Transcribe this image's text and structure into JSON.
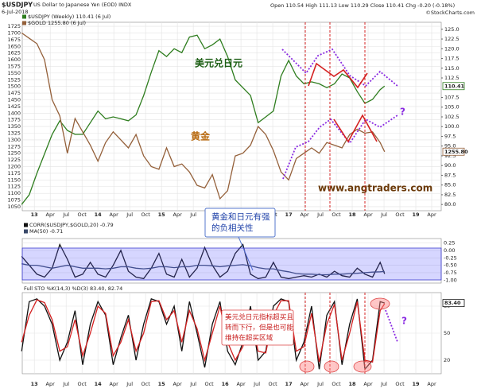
{
  "chart_data": [
    {
      "type": "line",
      "title": "$USDJPY",
      "subtitle": "US Dollar to Japanese Yen (EOD) INDX",
      "date": "6-Jul-2018",
      "quote": "Open 110.54 High 111.13 Low 110.29 Close 110.41 Chg -0.20 (-0.18%)",
      "credit": "©StockCharts.com",
      "xlim": [
        2012.81,
        2019.4
      ],
      "xticks": [
        {
          "value": 2013,
          "label": "13"
        },
        {
          "value": 2013.25,
          "label": "Apr"
        },
        {
          "value": 2013.5,
          "label": "Jul"
        },
        {
          "value": 2013.75,
          "label": "Oct"
        },
        {
          "value": 2014,
          "label": "14"
        },
        {
          "value": 2014.25,
          "label": "Apr"
        },
        {
          "value": 2014.5,
          "label": "Jul"
        },
        {
          "value": 2014.75,
          "label": "Oct"
        },
        {
          "value": 2015,
          "label": "15"
        },
        {
          "value": 2015.25,
          "label": "Apr"
        },
        {
          "value": 2015.5,
          "label": "Jul"
        },
        {
          "value": 2015.75,
          "label": "Oct"
        },
        {
          "value": 2016,
          "label": "16"
        },
        {
          "value": 2016.25,
          "label": "Apr"
        },
        {
          "value": 2016.5,
          "label": "Jul"
        },
        {
          "value": 2016.75,
          "label": "Oct"
        },
        {
          "value": 2017,
          "label": "17"
        },
        {
          "value": 2017.25,
          "label": "Apr"
        },
        {
          "value": 2017.5,
          "label": "Jul"
        },
        {
          "value": 2017.75,
          "label": "Oct"
        },
        {
          "value": 2018,
          "label": "18"
        },
        {
          "value": 2018.25,
          "label": "Apr"
        },
        {
          "value": 2018.5,
          "label": "Jul"
        },
        {
          "value": 2018.75,
          "label": "Oct"
        },
        {
          "value": 2019,
          "label": "19"
        },
        {
          "value": 2019.25,
          "label": "Apr"
        }
      ],
      "ylim": [
        1035,
        1740
      ],
      "yticks": [
        1050,
        1075,
        1100,
        1125,
        1150,
        1175,
        1200,
        1225,
        1250,
        1275,
        1300,
        1325,
        1350,
        1375,
        1400,
        1425,
        1450,
        1475,
        1500,
        1525,
        1550,
        1575,
        1600,
        1625,
        1650,
        1675,
        1700,
        1725
      ],
      "y2lim": [
        78.4,
        126.8
      ],
      "y2ticks": [
        {
          "value": 80,
          "label": "80.0"
        },
        {
          "value": 82.5,
          "label": "82.5"
        },
        {
          "value": 85,
          "label": "85.0"
        },
        {
          "value": 87.5,
          "label": "87.5"
        },
        {
          "value": 90,
          "label": "90.0"
        },
        {
          "value": 92.5,
          "label": "92.5"
        },
        {
          "value": 95,
          "label": "95.0"
        },
        {
          "value": 97.5,
          "label": "97.5"
        },
        {
          "value": 100,
          "label": "100.0"
        },
        {
          "value": 102.5,
          "label": "102.5"
        },
        {
          "value": 105,
          "label": "105.0"
        },
        {
          "value": 107.5,
          "label": "107.5"
        },
        {
          "value": 112.5,
          "label": "112.5"
        },
        {
          "value": 115,
          "label": "115.0"
        },
        {
          "value": 117.5,
          "label": "117.5"
        },
        {
          "value": 120,
          "label": "120.0"
        },
        {
          "value": 122.5,
          "label": "122.5"
        },
        {
          "value": 125,
          "label": "125.0"
        }
      ],
      "x": [
        2012.8,
        2012.92,
        2013.04,
        2013.16,
        2013.28,
        2013.4,
        2013.52,
        2013.64,
        2013.76,
        2013.88,
        2014,
        2014.12,
        2014.24,
        2014.36,
        2014.48,
        2014.6,
        2014.72,
        2014.84,
        2014.96,
        2015.08,
        2015.2,
        2015.32,
        2015.44,
        2015.56,
        2015.68,
        2015.8,
        2015.92,
        2016.04,
        2016.16,
        2016.28,
        2016.4,
        2016.52,
        2016.64,
        2016.76,
        2016.88,
        2017,
        2017.12,
        2017.24,
        2017.36,
        2017.48,
        2017.6,
        2017.72,
        2017.84,
        2017.96,
        2018.08,
        2018.2,
        2018.32,
        2018.44,
        2018.51
      ],
      "series": [
        {
          "name": "$USDJPY (Weekly) 110.41 (6 Jul)",
          "color": "#2e7d1e",
          "axis": "y2",
          "last_label": "110.41",
          "values": [
            80,
            82.5,
            88,
            93,
            98,
            101.5,
            99,
            98,
            98,
            101,
            104,
            102,
            102.5,
            102,
            101.5,
            103,
            108,
            114,
            119.5,
            118,
            120,
            119,
            123,
            123.5,
            120,
            121,
            122.5,
            118,
            112,
            110,
            108,
            101,
            102.5,
            104,
            113,
            117,
            113,
            111,
            111.5,
            111,
            110,
            111,
            113.5,
            112.5,
            109,
            106,
            107,
            109.5,
            110.41
          ]
        },
        {
          "name": "$GOLD 1255.80 (6 Jul)",
          "color": "#94603a",
          "last_label": "1255.80",
          "values": [
            1700,
            1680,
            1660,
            1600,
            1450,
            1390,
            1250,
            1380,
            1330,
            1280,
            1220,
            1290,
            1330,
            1300,
            1270,
            1320,
            1240,
            1200,
            1190,
            1270,
            1200,
            1210,
            1180,
            1130,
            1120,
            1170,
            1080,
            1110,
            1240,
            1250,
            1280,
            1350,
            1320,
            1260,
            1180,
            1150,
            1230,
            1250,
            1270,
            1250,
            1290,
            1280,
            1270,
            1320,
            1340,
            1325,
            1330,
            1290,
            1255.8
          ]
        }
      ],
      "annotations": [
        "美元兑日元",
        "黄金",
        "www.angtraders.com",
        "?"
      ]
    },
    {
      "type": "line",
      "xlim": [
        2012.81,
        2019.4
      ],
      "ylim": [
        -1.1,
        0.4
      ],
      "yticks": [
        {
          "value": 0.25,
          "label": "0.25"
        },
        {
          "value": 0,
          "label": "0.00"
        },
        {
          "value": -0.25,
          "label": "-0.25"
        },
        {
          "value": -0.5,
          "label": "-0.50"
        },
        {
          "value": -0.75,
          "label": "-0.75"
        },
        {
          "value": -1,
          "label": "-1.00"
        }
      ],
      "x": [
        2012.8,
        2012.92,
        2013.04,
        2013.16,
        2013.28,
        2013.4,
        2013.52,
        2013.64,
        2013.76,
        2013.88,
        2014,
        2014.12,
        2014.24,
        2014.36,
        2014.48,
        2014.6,
        2014.72,
        2014.84,
        2014.96,
        2015.08,
        2015.2,
        2015.32,
        2015.44,
        2015.56,
        2015.68,
        2015.8,
        2015.92,
        2016.04,
        2016.16,
        2016.28,
        2016.4,
        2016.52,
        2016.64,
        2016.76,
        2016.88,
        2017,
        2017.12,
        2017.24,
        2017.36,
        2017.48,
        2017.6,
        2017.72,
        2017.84,
        2017.96,
        2018.08,
        2018.2,
        2018.32,
        2018.44,
        2018.51
      ],
      "series": [
        {
          "name": "CORR($USDJPY,$GOLD,20) -0.79",
          "color": "#111111",
          "values": [
            -0.2,
            -0.5,
            -0.8,
            -0.9,
            -0.6,
            0.2,
            -0.3,
            -0.9,
            -0.8,
            -0.4,
            -0.8,
            -0.9,
            -0.5,
            0,
            -0.7,
            -0.9,
            -0.95,
            -0.6,
            -0.1,
            -0.8,
            -0.9,
            -0.3,
            -0.9,
            -0.6,
            0.1,
            -0.5,
            -0.9,
            -0.7,
            -0.1,
            0.2,
            -0.8,
            -0.95,
            -0.9,
            -0.4,
            -0.9,
            -0.95,
            -0.9,
            -0.85,
            -0.9,
            -0.8,
            -0.9,
            -0.7,
            -0.85,
            -0.9,
            -0.6,
            -0.8,
            -0.9,
            -0.4,
            -0.79
          ]
        },
        {
          "name": "MA(50) -0.71",
          "color": "#3a4a6a",
          "values": [
            -0.45,
            -0.5,
            -0.5,
            -0.55,
            -0.6,
            -0.55,
            -0.5,
            -0.55,
            -0.6,
            -0.6,
            -0.6,
            -0.62,
            -0.6,
            -0.55,
            -0.55,
            -0.6,
            -0.62,
            -0.6,
            -0.55,
            -0.55,
            -0.58,
            -0.55,
            -0.55,
            -0.5,
            -0.5,
            -0.52,
            -0.55,
            -0.52,
            -0.5,
            -0.48,
            -0.52,
            -0.58,
            -0.62,
            -0.62,
            -0.68,
            -0.72,
            -0.78,
            -0.8,
            -0.8,
            -0.82,
            -0.82,
            -0.8,
            -0.8,
            -0.78,
            -0.77,
            -0.75,
            -0.73,
            -0.72,
            -0.71
          ]
        }
      ],
      "callout": [
        "黄金和日元有强",
        "的负相关性"
      ]
    },
    {
      "type": "line",
      "title": "Full STO %K(14,3) %D(3) 83.40, 82.74",
      "xlim": [
        2012.81,
        2019.4
      ],
      "ylim": [
        5,
        95
      ],
      "yticks": [
        20,
        50,
        80
      ],
      "xticks": [
        {
          "value": 2013,
          "label": "13"
        },
        {
          "value": 2013.25,
          "label": "Apr"
        },
        {
          "value": 2013.5,
          "label": "Jul"
        },
        {
          "value": 2013.75,
          "label": "Oct"
        },
        {
          "value": 2014,
          "label": "14"
        },
        {
          "value": 2014.25,
          "label": "Apr"
        },
        {
          "value": 2014.5,
          "label": "Jul"
        },
        {
          "value": 2014.75,
          "label": "Oct"
        },
        {
          "value": 2015,
          "label": "15"
        },
        {
          "value": 2015.25,
          "label": "Apr"
        },
        {
          "value": 2015.5,
          "label": "Jul"
        },
        {
          "value": 2015.75,
          "label": "Oct"
        },
        {
          "value": 2016,
          "label": "16"
        },
        {
          "value": 2016.25,
          "label": "Apr"
        },
        {
          "value": 2016.5,
          "label": "Jul"
        },
        {
          "value": 2016.75,
          "label": "Oct"
        },
        {
          "value": 2017,
          "label": "17"
        },
        {
          "value": 2017.25,
          "label": "Apr"
        },
        {
          "value": 2017.5,
          "label": "Jul"
        },
        {
          "value": 2017.75,
          "label": "Oct"
        },
        {
          "value": 2018,
          "label": "18"
        },
        {
          "value": 2018.25,
          "label": "Apr"
        },
        {
          "value": 2018.5,
          "label": "Jul"
        },
        {
          "value": 2018.75,
          "label": "Oct"
        },
        {
          "value": 2019,
          "label": "19"
        },
        {
          "value": 2019.25,
          "label": "Apr"
        }
      ],
      "x": [
        2012.8,
        2012.92,
        2013.04,
        2013.16,
        2013.28,
        2013.4,
        2013.52,
        2013.64,
        2013.76,
        2013.88,
        2014,
        2014.12,
        2014.24,
        2014.36,
        2014.48,
        2014.6,
        2014.72,
        2014.84,
        2014.96,
        2015.08,
        2015.2,
        2015.32,
        2015.44,
        2015.56,
        2015.68,
        2015.8,
        2015.92,
        2016.04,
        2016.16,
        2016.28,
        2016.4,
        2016.52,
        2016.64,
        2016.76,
        2016.88,
        2017,
        2017.12,
        2017.24,
        2017.36,
        2017.48,
        2017.6,
        2017.72,
        2017.84,
        2017.96,
        2018.08,
        2018.2,
        2018.32,
        2018.44,
        2018.51
      ],
      "series": [
        {
          "color": "#111111",
          "last_label": "83.40",
          "values": [
            30,
            85,
            88,
            80,
            60,
            20,
            40,
            75,
            15,
            60,
            85,
            70,
            15,
            45,
            70,
            20,
            60,
            88,
            85,
            60,
            80,
            30,
            85,
            50,
            12,
            60,
            85,
            30,
            15,
            40,
            80,
            20,
            30,
            80,
            88,
            85,
            20,
            40,
            80,
            10,
            70,
            85,
            15,
            60,
            88,
            10,
            20,
            85,
            83.4
          ]
        },
        {
          "color": "#d42020",
          "values": [
            40,
            70,
            87,
            84,
            65,
            30,
            35,
            65,
            25,
            50,
            80,
            72,
            25,
            40,
            65,
            30,
            50,
            85,
            86,
            65,
            75,
            40,
            75,
            55,
            20,
            50,
            80,
            40,
            20,
            35,
            70,
            30,
            28,
            70,
            86,
            86,
            30,
            35,
            72,
            18,
            60,
            82,
            20,
            50,
            85,
            20,
            18,
            75,
            82.74
          ]
        }
      ],
      "annotations": [
        "?"
      ],
      "callout": [
        "美元兑日元指标超买且",
        "转而下行，但是也可能",
        "维持在超买区域"
      ]
    }
  ]
}
